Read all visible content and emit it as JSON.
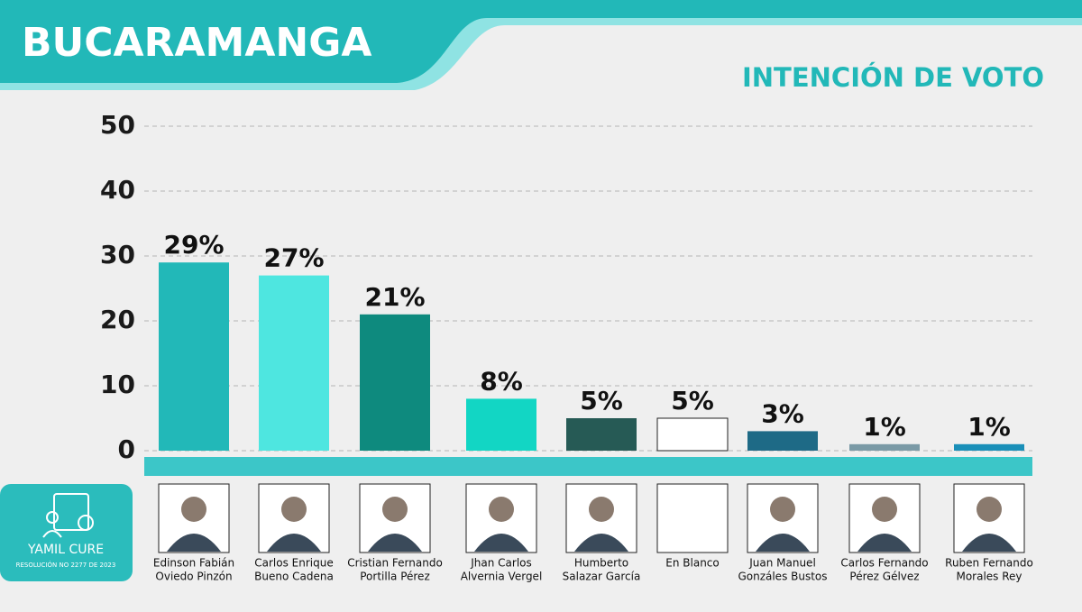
{
  "chart_data": {
    "type": "bar",
    "title": "BUCARAMANGA",
    "subtitle": "INTENCIÓN DE VOTO",
    "categories": [
      [
        "Edinson Fabián",
        "Oviedo Pinzón"
      ],
      [
        "Carlos Enrique",
        "Bueno Cadena"
      ],
      [
        "Cristian Fernando",
        "Portilla Pérez"
      ],
      [
        "Jhan Carlos",
        "Alvernia Vergel"
      ],
      [
        "Humberto",
        "Salazar García"
      ],
      [
        "En Blanco"
      ],
      [
        "Juan Manuel",
        "Gonzáles Bustos"
      ],
      [
        "Carlos Fernando",
        "Pérez Gélvez"
      ],
      [
        "Ruben Fernando",
        "Morales Rey"
      ]
    ],
    "values": [
      29,
      27,
      21,
      8,
      5,
      5,
      3,
      1,
      1
    ],
    "value_labels": [
      "29%",
      "27%",
      "21%",
      "8%",
      "5%",
      "5%",
      "3%",
      "1%",
      "1%"
    ],
    "colors": [
      "#22b8b8",
      "#4ee6e0",
      "#0e8a7e",
      "#12d6c4",
      "#265a55",
      "#ffffff",
      "#1e6a86",
      "#7a9aa6",
      "#1a8fb8"
    ],
    "ylim": [
      0,
      50
    ],
    "yticks": [
      0,
      10,
      20,
      30,
      40,
      50
    ],
    "grid": true
  },
  "logo": {
    "name": "YAMIL CURE",
    "resolution": "RESOLUCIÓN NO 2277 DE 2023"
  }
}
